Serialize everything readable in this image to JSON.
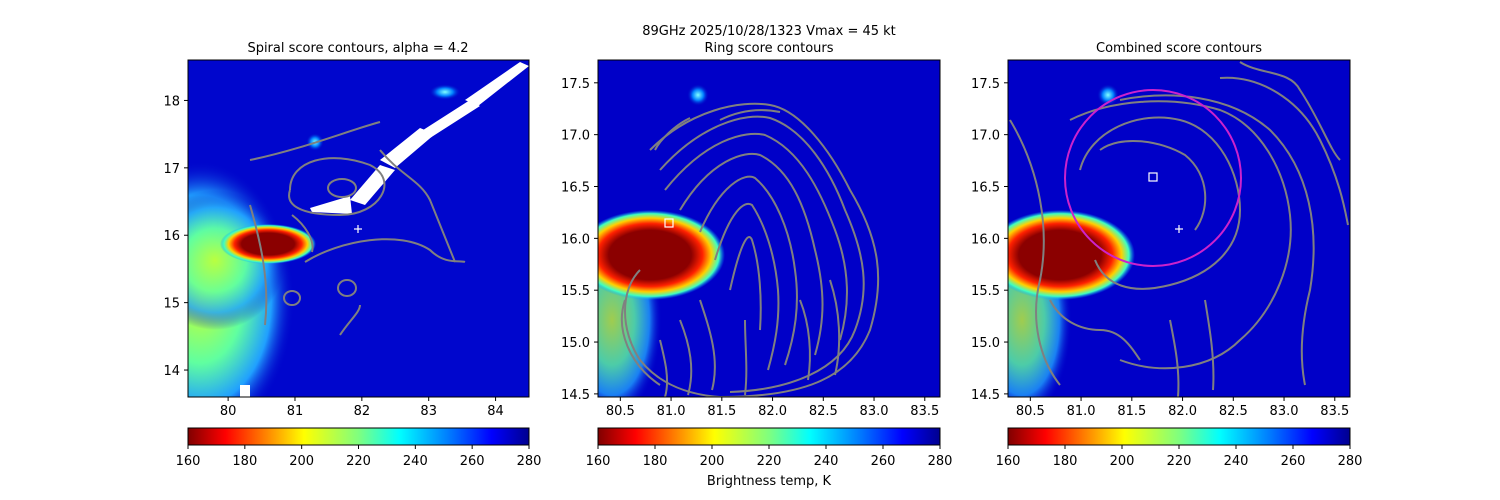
{
  "figure": {
    "suptitle_line1": "89GHz  2025/10/28/1323    Vmax = 45 kt",
    "colorbar_label": "Brightness temp, K"
  },
  "colors": {
    "contour": "#808080",
    "ring_circle": "#cc22cc",
    "marker": "#ffffff",
    "background_field": "#0000a8"
  },
  "chart_data": [
    {
      "type": "heatmap",
      "title": "Spiral score contours, alpha =  4.2",
      "xlim": [
        79.4,
        84.5
      ],
      "ylim": [
        13.6,
        18.6
      ],
      "xticks": [
        80,
        81,
        82,
        83,
        84
      ],
      "yticks": [
        14,
        15,
        16,
        17,
        18
      ],
      "xtick_labels": [
        "80",
        "81",
        "82",
        "83",
        "84"
      ],
      "ytick_labels": [
        "14",
        "15",
        "16",
        "17",
        "18"
      ],
      "colorbar": {
        "min": 160,
        "max": 280,
        "ticks": [
          "160",
          "180",
          "200",
          "220",
          "240",
          "260",
          "280"
        ],
        "cmap": "jet_r"
      },
      "center_plus": [
        81.95,
        16.1
      ],
      "grid": false
    },
    {
      "type": "heatmap",
      "title": "Ring score contours",
      "xlim": [
        80.28,
        83.65
      ],
      "ylim": [
        14.47,
        17.72
      ],
      "xticks": [
        80.5,
        81.0,
        81.5,
        82.0,
        82.5,
        83.0,
        83.5
      ],
      "yticks": [
        14.5,
        15.0,
        15.5,
        16.0,
        16.5,
        17.0,
        17.5
      ],
      "xtick_labels": [
        "80.5",
        "81.0",
        "81.5",
        "82.0",
        "82.5",
        "83.0",
        "83.5"
      ],
      "ytick_labels": [
        "14.5",
        "15.0",
        "15.5",
        "16.0",
        "16.5",
        "17.0",
        "17.5"
      ],
      "colorbar": {
        "min": 160,
        "max": 280,
        "ticks": [
          "160",
          "180",
          "200",
          "220",
          "240",
          "260",
          "280"
        ],
        "cmap": "jet_r"
      },
      "center_square": [
        80.97,
        16.15
      ],
      "grid": false
    },
    {
      "type": "heatmap",
      "title": "Combined score contours",
      "xlim": [
        80.28,
        83.65
      ],
      "ylim": [
        14.47,
        17.72
      ],
      "xticks": [
        80.5,
        81.0,
        81.5,
        82.0,
        82.5,
        83.0,
        83.5
      ],
      "yticks": [
        14.5,
        15.0,
        15.5,
        16.0,
        16.5,
        17.0,
        17.5
      ],
      "xtick_labels": [
        "80.5",
        "81.0",
        "81.5",
        "82.0",
        "82.5",
        "83.0",
        "83.5"
      ],
      "ytick_labels": [
        "14.5",
        "15.0",
        "15.5",
        "16.0",
        "16.5",
        "17.0",
        "17.5"
      ],
      "colorbar": {
        "min": 160,
        "max": 280,
        "ticks": [
          "160",
          "180",
          "200",
          "220",
          "240",
          "260",
          "280"
        ],
        "cmap": "jet_r"
      },
      "center_square": [
        81.7,
        16.6
      ],
      "center_plus": [
        81.95,
        16.1
      ],
      "ring_circle": {
        "center": [
          81.7,
          16.6
        ],
        "radius_deg": 0.88
      },
      "grid": false
    }
  ]
}
